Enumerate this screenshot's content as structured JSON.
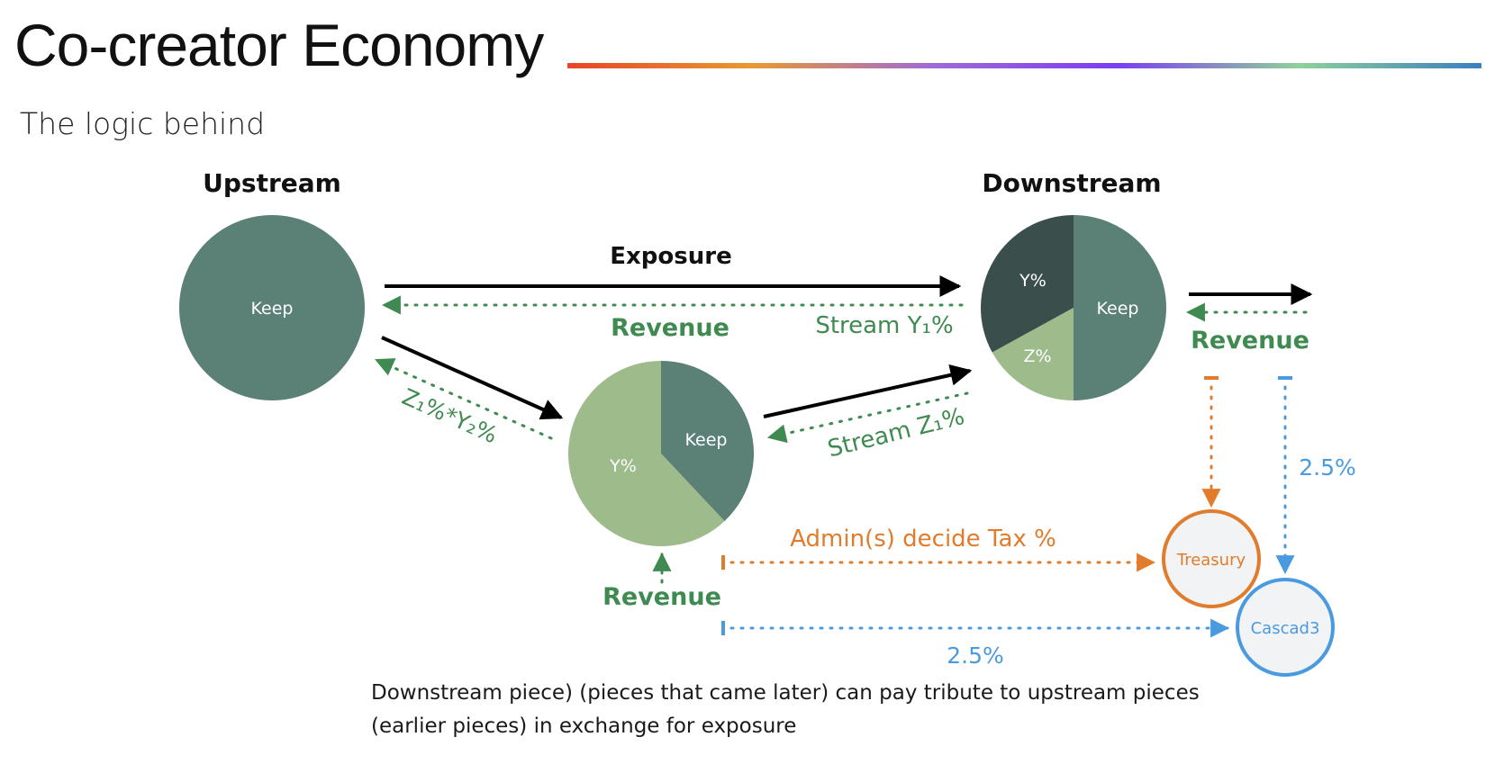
{
  "title": "Co-creator Economy",
  "subtitle": "The logic behind",
  "caption": {
    "line1": "Downstream piece) (pieces that came later) can pay tribute to upstream pieces",
    "line2": "(earlier pieces) in exchange for exposure"
  },
  "colors": {
    "keep": "#5b8076",
    "light_green": "#9dbb8b",
    "dark": "#3a4f4c",
    "revenue_green": "#3f8a50",
    "orange": "#e07c2c",
    "blue": "#4a9ae0",
    "circle_fill": "#f1f3f4",
    "rule_gradient": [
      "#e8432b",
      "#e89a2f",
      "#a06ad6",
      "#7b3df2",
      "#8fd19a",
      "#3a7fbf"
    ]
  },
  "nodes": {
    "upstream": {
      "heading": "Upstream",
      "keep_label": "Keep",
      "keep_pct": 100
    },
    "middle": {
      "keep_label": "Keep",
      "y_label": "Y%",
      "keep_pct": 38,
      "y_pct": 62
    },
    "downstream": {
      "heading": "Downstream",
      "keep_label": "Keep",
      "y_label": "Y%",
      "z_label": "Z%",
      "keep_pct": 50,
      "y_pct": 33,
      "z_pct": 17
    },
    "treasury": {
      "label": "Treasury"
    },
    "cascad3": {
      "label": "Cascad3"
    }
  },
  "labels": {
    "exposure": "Exposure",
    "revenue_top": "Revenue",
    "stream_y1": "Stream Y₁%",
    "stream_z1": "Stream Z₁%",
    "z1_y2": "Z₁%*Y₂%",
    "revenue_right": "Revenue",
    "revenue_bottom": "Revenue",
    "admin_tax": "Admin(s) decide Tax %",
    "pct_right": "2.5%",
    "pct_bottom": "2.5%"
  }
}
